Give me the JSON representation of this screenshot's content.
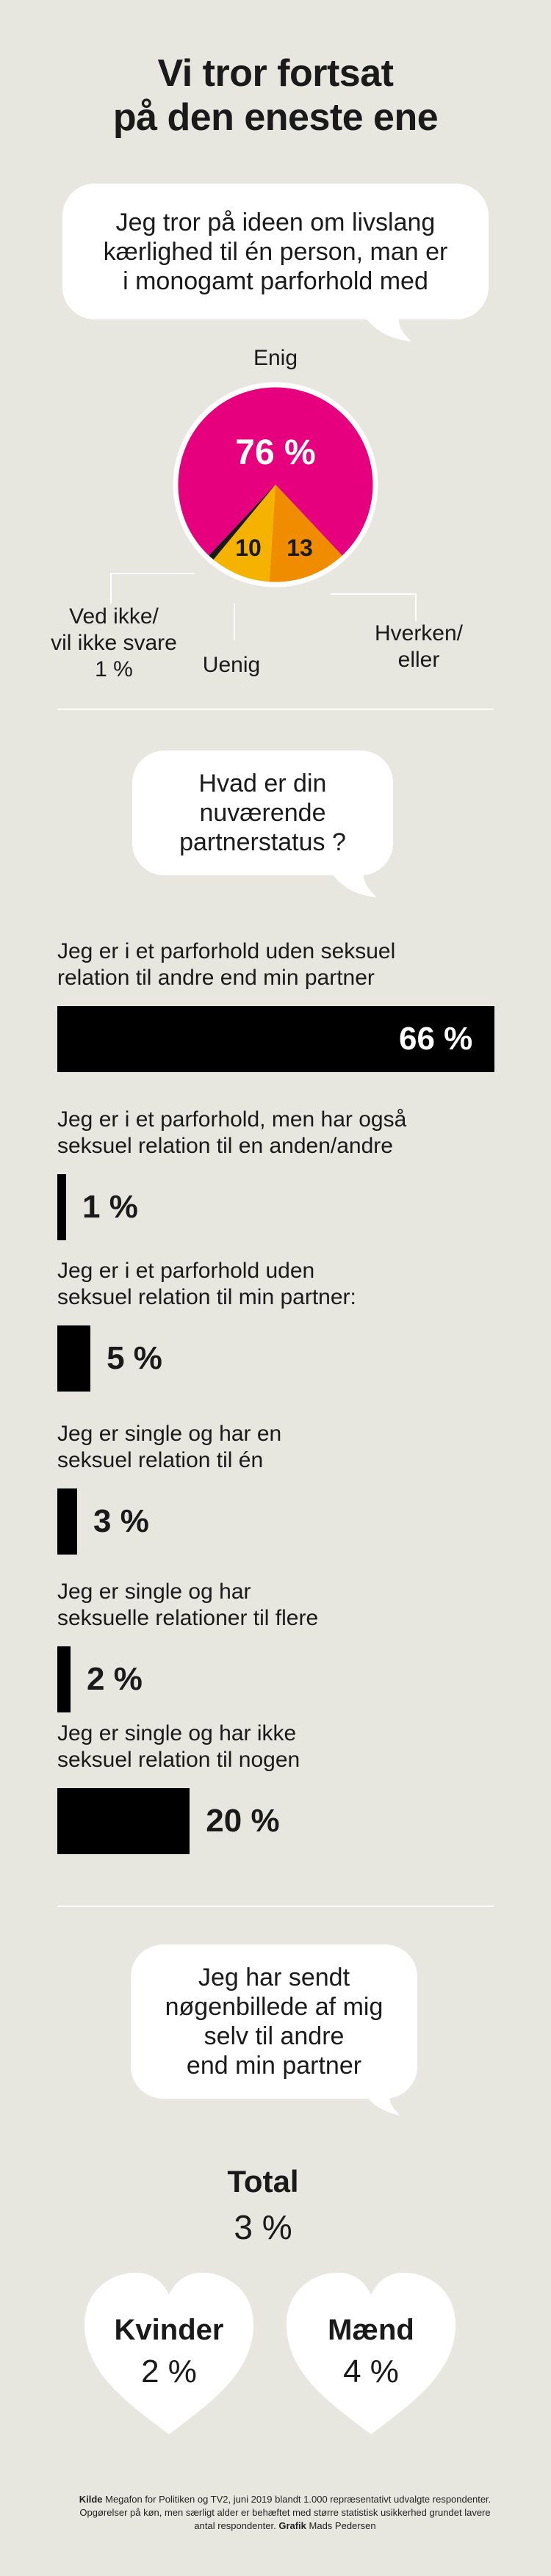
{
  "title": [
    "Vi tror fortsat",
    "på den eneste ene"
  ],
  "q1": {
    "bubble": [
      "Jeg tror på ideen om livslang",
      "kærlighed til én person, man er",
      "i monogamt parforhold med"
    ]
  },
  "q2": {
    "bubble": [
      "Hvad er din",
      "nuværende",
      "partnerstatus ?"
    ]
  },
  "q3": {
    "bubble": [
      "Jeg har sendt",
      "nøgenbillede af mig",
      "selv til andre",
      "end min partner"
    ],
    "total_label": "Total",
    "total_value": "3 %",
    "women_label": "Kvinder",
    "women_value": "2 %",
    "men_label": "Mænd",
    "men_value": "4 %"
  },
  "source": {
    "kilde_label": "Kilde",
    "text1": " Megafon for Politiken og TV2, juni 2019 blandt 1.000 repræsentativt udvalgte respondenter.",
    "text2": "Opgørelser på køn, men særligt alder er behæftet med større statistisk usikkerhed grundet lavere",
    "text3": "antal respondenter. ",
    "grafik_label": "Grafik",
    "grafik_name": " Mads Pedersen"
  },
  "colors": {
    "background": "#e7e7e0",
    "enig": "#e6007e",
    "hverken": "#f08c00",
    "uenig": "#f5b300",
    "ved_ikke": "#1a1a1a",
    "bar": "#000000"
  },
  "chart_data": [
    {
      "type": "pie",
      "slices": [
        {
          "label": "Enig",
          "value": 76,
          "value_label": "76 %"
        },
        {
          "label": "Hverken/ eller",
          "label_lines": [
            "Hverken/",
            "eller"
          ],
          "value": 13,
          "value_label": "13"
        },
        {
          "label": "Uenig",
          "value": 10,
          "value_label": "10"
        },
        {
          "label": "Ved ikke/ vil ikke svare",
          "label_lines": [
            "Ved ikke/",
            "vil ikke svare",
            "1 %"
          ],
          "value": 1,
          "value_label": "1 %"
        }
      ]
    },
    {
      "type": "bar",
      "orientation": "horizontal",
      "categories": [
        [
          "Jeg er i et parforhold uden seksuel",
          "relation til andre end min partner"
        ],
        [
          "Jeg er i et parforhold, men har også",
          "seksuel relation til en anden/andre"
        ],
        [
          "Jeg er i et parforhold uden",
          "seksuel relation til min partner:"
        ],
        [
          "Jeg er single og har en",
          "seksuel relation til én"
        ],
        [
          "Jeg er single og har",
          "seksuelle relationer til flere"
        ],
        [
          "Jeg er single og har ikke",
          "seksuel relation til nogen"
        ]
      ],
      "values": [
        66,
        1,
        5,
        3,
        2,
        20
      ],
      "value_labels": [
        "66 %",
        "1 %",
        "5 %",
        "3 %",
        "2 %",
        "20 %"
      ]
    }
  ]
}
